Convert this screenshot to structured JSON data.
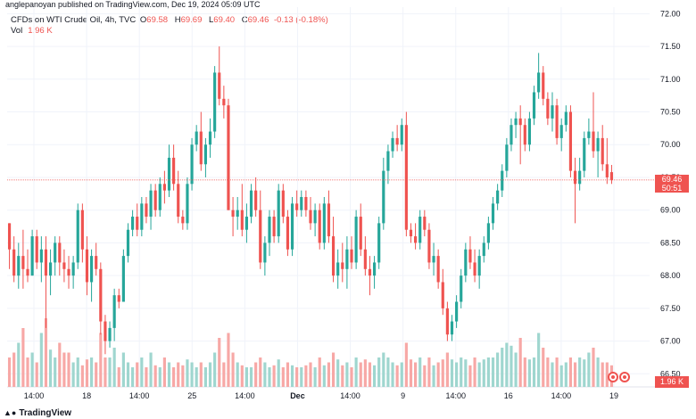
{
  "header": {
    "publisher": "anglepanoyan published on TradingView.com, Dec 19, 2024 05:09 UTC",
    "symbol": "CFDs on WTI Crude Oil, 4h, TVC",
    "open_key": "O",
    "open": "69.58",
    "high_key": "H",
    "high": "69.69",
    "low_key": "L",
    "low": "69.40",
    "close_key": "C",
    "close": "69.46",
    "change": "-0.13 (-0.18%)",
    "volume_label": "Vol",
    "volume": "1.96 K"
  },
  "price_tag": {
    "price": "69.46",
    "countdown": "50:51"
  },
  "volume_tag": "1.96 K",
  "footer": {
    "brand": "TradingView",
    "logo": "tradingview-logo-icon"
  },
  "colors": {
    "up": "#26a69a",
    "down": "#ef5350",
    "up_vol": "#9fd6cf",
    "down_vol": "#f7a8a6",
    "grid": "#f0f3fa"
  },
  "icons": [
    "calendar-event-icon",
    "calendar-event-icon"
  ],
  "chart_data": {
    "type": "candlestick",
    "interval": "4h",
    "y_axis": {
      "side": "right",
      "ylim": [
        66.3,
        72.1
      ],
      "ticks": [
        "72.00",
        "71.50",
        "71.00",
        "70.50",
        "70.00",
        "69.50",
        "69.00",
        "68.50",
        "68.00",
        "67.50",
        "67.00",
        "66.50"
      ]
    },
    "x_axis": {
      "ticks": [
        "14:00",
        "18",
        "14:00",
        "25",
        "14:00",
        "Dec",
        "14:00",
        "9",
        "14:00",
        "16",
        "14:00",
        "19"
      ]
    },
    "grid": true,
    "last_price": 69.46,
    "candles": [
      [
        68.8,
        68.8,
        68.1,
        68.4,
        0.3
      ],
      [
        68.4,
        68.6,
        67.9,
        68.0,
        0.35
      ],
      [
        68.0,
        68.5,
        67.8,
        68.3,
        0.45
      ],
      [
        68.3,
        68.7,
        67.8,
        68.1,
        0.6
      ],
      [
        68.1,
        68.4,
        67.9,
        68.0,
        0.3
      ],
      [
        68.0,
        68.7,
        68.0,
        68.6,
        0.35
      ],
      [
        68.6,
        68.7,
        68.1,
        68.2,
        0.25
      ],
      [
        68.2,
        68.6,
        67.9,
        68.4,
        0.55
      ],
      [
        68.4,
        68.6,
        67.2,
        68.0,
        0.7
      ],
      [
        68.0,
        68.4,
        67.7,
        68.2,
        0.38
      ],
      [
        68.2,
        68.6,
        68.0,
        68.5,
        0.3
      ],
      [
        68.5,
        68.6,
        68.0,
        68.2,
        0.45
      ],
      [
        68.2,
        68.4,
        67.9,
        68.1,
        0.35
      ],
      [
        68.1,
        68.3,
        67.8,
        68.0,
        0.35
      ],
      [
        68.0,
        68.3,
        67.8,
        68.2,
        0.25
      ],
      [
        68.2,
        69.1,
        68.1,
        69.0,
        0.3
      ],
      [
        69.0,
        69.1,
        68.2,
        68.4,
        0.22
      ],
      [
        68.4,
        68.6,
        67.7,
        67.9,
        0.28
      ],
      [
        67.9,
        68.4,
        67.6,
        68.3,
        0.3
      ],
      [
        68.3,
        68.5,
        68.0,
        68.1,
        0.25
      ],
      [
        68.1,
        68.2,
        67.1,
        67.3,
        0.55
      ],
      [
        67.3,
        67.4,
        66.8,
        67.0,
        0.3
      ],
      [
        67.0,
        67.3,
        66.9,
        67.2,
        0.3
      ],
      [
        67.2,
        67.8,
        67.0,
        67.7,
        0.4
      ],
      [
        67.7,
        67.8,
        67.5,
        67.6,
        0.2
      ],
      [
        67.6,
        68.4,
        67.6,
        68.3,
        0.35
      ],
      [
        68.3,
        68.8,
        68.2,
        68.7,
        0.25
      ],
      [
        68.7,
        69.0,
        68.6,
        68.9,
        0.2
      ],
      [
        68.9,
        69.1,
        68.6,
        68.7,
        0.25
      ],
      [
        68.7,
        69.2,
        68.6,
        69.1,
        0.3
      ],
      [
        69.1,
        69.2,
        68.8,
        68.9,
        0.2
      ],
      [
        68.9,
        69.4,
        68.7,
        69.3,
        0.35
      ],
      [
        69.3,
        69.4,
        68.9,
        69.0,
        0.22
      ],
      [
        69.0,
        69.5,
        68.9,
        69.4,
        0.2
      ],
      [
        69.4,
        69.6,
        69.1,
        69.3,
        0.3
      ],
      [
        69.3,
        70.0,
        69.2,
        69.8,
        0.25
      ],
      [
        69.8,
        70.0,
        69.3,
        69.4,
        0.2
      ],
      [
        69.4,
        69.6,
        68.8,
        68.9,
        0.25
      ],
      [
        68.9,
        69.0,
        68.7,
        68.8,
        0.22
      ],
      [
        68.8,
        69.5,
        68.7,
        69.4,
        0.28
      ],
      [
        69.4,
        70.1,
        69.3,
        70.0,
        0.25
      ],
      [
        70.0,
        70.3,
        69.9,
        70.2,
        0.2
      ],
      [
        70.2,
        70.5,
        69.6,
        69.7,
        0.25
      ],
      [
        69.7,
        70.1,
        69.5,
        70.0,
        0.2
      ],
      [
        70.0,
        70.4,
        69.8,
        70.2,
        0.25
      ],
      [
        70.2,
        71.2,
        70.1,
        71.1,
        0.35
      ],
      [
        71.1,
        71.5,
        70.6,
        70.7,
        0.5
      ],
      [
        70.7,
        70.9,
        70.4,
        70.6,
        0.25
      ],
      [
        70.6,
        70.7,
        69.0,
        69.0,
        0.55
      ],
      [
        69.0,
        69.2,
        68.6,
        68.9,
        0.35
      ],
      [
        68.9,
        69.2,
        68.7,
        69.0,
        0.25
      ],
      [
        69.0,
        69.4,
        68.6,
        68.7,
        0.22
      ],
      [
        68.7,
        69.1,
        68.5,
        68.9,
        0.2
      ],
      [
        68.9,
        69.4,
        68.8,
        69.3,
        0.2
      ],
      [
        69.3,
        69.5,
        68.9,
        69.0,
        0.25
      ],
      [
        69.0,
        69.3,
        68.1,
        68.2,
        0.3
      ],
      [
        68.2,
        68.6,
        68.0,
        68.5,
        0.25
      ],
      [
        68.5,
        69.0,
        68.3,
        68.9,
        0.2
      ],
      [
        68.9,
        69.0,
        68.5,
        68.6,
        0.22
      ],
      [
        68.6,
        69.4,
        68.5,
        69.3,
        0.28
      ],
      [
        69.3,
        69.4,
        68.8,
        68.9,
        0.2
      ],
      [
        68.9,
        69.0,
        68.3,
        68.4,
        0.25
      ],
      [
        68.4,
        69.2,
        68.3,
        69.1,
        0.22
      ],
      [
        69.1,
        69.3,
        68.9,
        69.0,
        0.2
      ],
      [
        69.0,
        69.3,
        68.9,
        69.2,
        0.2
      ],
      [
        69.2,
        69.3,
        68.9,
        69.0,
        0.22
      ],
      [
        69.0,
        69.2,
        68.7,
        68.8,
        0.25
      ],
      [
        68.8,
        69.1,
        68.6,
        69.0,
        0.2
      ],
      [
        69.0,
        69.1,
        68.4,
        68.5,
        0.3
      ],
      [
        68.5,
        69.2,
        68.4,
        69.1,
        0.22
      ],
      [
        69.1,
        69.3,
        68.5,
        68.6,
        0.25
      ],
      [
        68.6,
        68.9,
        67.9,
        68.0,
        0.35
      ],
      [
        68.0,
        68.4,
        67.8,
        68.2,
        0.28
      ],
      [
        68.2,
        68.5,
        67.9,
        68.1,
        0.22
      ],
      [
        68.1,
        68.6,
        67.8,
        68.4,
        0.25
      ],
      [
        68.4,
        68.6,
        68.1,
        68.2,
        0.2
      ],
      [
        68.2,
        69.0,
        68.1,
        68.9,
        0.3
      ],
      [
        68.9,
        69.1,
        68.3,
        68.4,
        0.25
      ],
      [
        68.4,
        68.6,
        68.0,
        68.1,
        0.28
      ],
      [
        68.1,
        68.3,
        67.7,
        68.0,
        0.25
      ],
      [
        68.0,
        68.3,
        67.8,
        68.2,
        0.22
      ],
      [
        68.2,
        68.9,
        68.1,
        68.8,
        0.3
      ],
      [
        68.8,
        69.8,
        68.7,
        69.6,
        0.35
      ],
      [
        69.6,
        70.0,
        69.4,
        69.9,
        0.3
      ],
      [
        69.9,
        70.2,
        69.8,
        70.1,
        0.25
      ],
      [
        70.1,
        70.3,
        69.9,
        70.0,
        0.22
      ],
      [
        70.0,
        70.4,
        69.9,
        70.3,
        0.25
      ],
      [
        70.3,
        70.5,
        68.6,
        68.7,
        0.45
      ],
      [
        68.7,
        68.8,
        68.5,
        68.6,
        0.28
      ],
      [
        68.6,
        68.8,
        68.4,
        68.5,
        0.25
      ],
      [
        68.5,
        69.0,
        68.4,
        68.9,
        0.3
      ],
      [
        68.9,
        69.0,
        68.6,
        68.7,
        0.22
      ],
      [
        68.7,
        68.8,
        68.1,
        68.2,
        0.3
      ],
      [
        68.2,
        68.5,
        68.0,
        68.3,
        0.22
      ],
      [
        68.3,
        68.4,
        67.8,
        67.9,
        0.25
      ],
      [
        67.9,
        68.1,
        67.4,
        67.5,
        0.28
      ],
      [
        67.5,
        67.6,
        67.0,
        67.1,
        0.35
      ],
      [
        67.1,
        67.4,
        67.0,
        67.3,
        0.28
      ],
      [
        67.3,
        67.7,
        67.2,
        67.6,
        0.25
      ],
      [
        67.6,
        68.1,
        67.5,
        68.0,
        0.3
      ],
      [
        68.0,
        68.5,
        67.9,
        68.4,
        0.28
      ],
      [
        68.4,
        68.6,
        68.1,
        68.2,
        0.22
      ],
      [
        68.2,
        68.4,
        67.9,
        68.0,
        0.3
      ],
      [
        68.0,
        68.4,
        67.8,
        68.3,
        0.25
      ],
      [
        68.3,
        68.6,
        68.2,
        68.5,
        0.28
      ],
      [
        68.5,
        68.9,
        68.4,
        68.8,
        0.3
      ],
      [
        68.8,
        69.2,
        68.7,
        69.1,
        0.3
      ],
      [
        69.1,
        69.4,
        69.0,
        69.3,
        0.35
      ],
      [
        69.3,
        69.7,
        69.2,
        69.6,
        0.4
      ],
      [
        69.6,
        70.1,
        69.5,
        70.0,
        0.45
      ],
      [
        70.0,
        70.4,
        69.9,
        70.3,
        0.42
      ],
      [
        70.3,
        70.5,
        70.1,
        70.4,
        0.35
      ],
      [
        70.4,
        70.6,
        69.7,
        70.3,
        0.5
      ],
      [
        70.3,
        70.4,
        69.9,
        70.0,
        0.3
      ],
      [
        70.0,
        70.5,
        69.9,
        70.4,
        0.28
      ],
      [
        70.4,
        70.9,
        70.3,
        70.8,
        0.3
      ],
      [
        70.8,
        71.4,
        70.7,
        71.1,
        0.55
      ],
      [
        71.1,
        71.2,
        70.6,
        70.7,
        0.4
      ],
      [
        70.7,
        70.8,
        70.3,
        70.4,
        0.3
      ],
      [
        70.4,
        70.8,
        70.2,
        70.6,
        0.25
      ],
      [
        70.6,
        70.7,
        70.0,
        70.1,
        0.3
      ],
      [
        70.1,
        70.4,
        69.9,
        70.3,
        0.22
      ],
      [
        70.3,
        70.6,
        70.2,
        70.5,
        0.25
      ],
      [
        70.5,
        70.6,
        69.5,
        69.6,
        0.3
      ],
      [
        69.6,
        69.8,
        68.8,
        69.4,
        0.25
      ],
      [
        69.4,
        69.8,
        69.3,
        69.6,
        0.3
      ],
      [
        69.6,
        70.2,
        69.5,
        70.1,
        0.28
      ],
      [
        70.1,
        70.4,
        70.0,
        70.2,
        0.35
      ],
      [
        70.2,
        70.8,
        69.8,
        69.9,
        0.4
      ],
      [
        69.9,
        70.2,
        69.5,
        70.1,
        0.3
      ],
      [
        70.1,
        70.3,
        69.6,
        69.7,
        0.25
      ],
      [
        69.7,
        70.1,
        69.4,
        69.5,
        0.25
      ],
      [
        69.58,
        69.69,
        69.4,
        69.46,
        0.22
      ]
    ]
  }
}
